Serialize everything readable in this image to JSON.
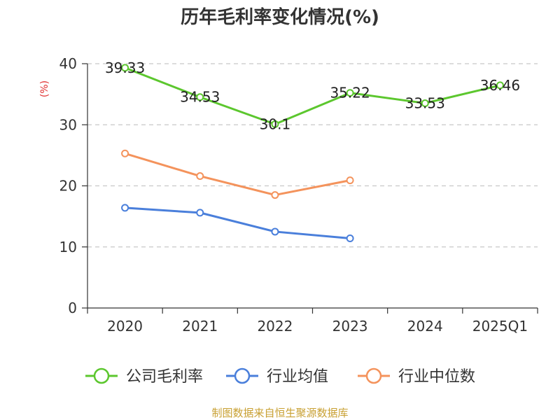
{
  "source_text": "制图数据来自恒生聚源数据库",
  "chart_data": {
    "type": "line",
    "title": "历年毛利率变化情况(%)",
    "ylabel": "(%)",
    "xlabel": "",
    "categories": [
      "2020",
      "2021",
      "2022",
      "2023",
      "2024",
      "2025Q1"
    ],
    "ylim": [
      0,
      40
    ],
    "yticks": [
      0,
      10,
      20,
      30,
      40
    ],
    "grid": true,
    "legend_position": "bottom",
    "series": [
      {
        "name": "公司毛利率",
        "color": "#5cc72e",
        "values": [
          39.33,
          34.53,
          30.1,
          35.22,
          33.53,
          36.46
        ],
        "labels": [
          "39.33",
          "34.53",
          "30.1",
          "35.22",
          "33.53",
          "36.46"
        ]
      },
      {
        "name": "行业均值",
        "color": "#4a7fdb",
        "values": [
          16.4,
          15.6,
          12.5,
          11.4,
          null,
          null
        ]
      },
      {
        "name": "行业中位数",
        "color": "#f4935c",
        "values": [
          25.3,
          21.6,
          18.5,
          20.9,
          null,
          null
        ]
      }
    ],
    "ylabel_color": "#e03030",
    "source_color": "#c8a032"
  }
}
